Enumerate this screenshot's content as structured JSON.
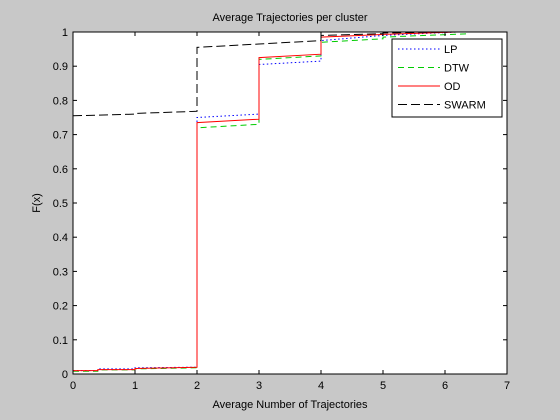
{
  "chart_data": {
    "type": "line",
    "title": "Average Trajectories per cluster",
    "xlabel": "Average Number of Trajectories",
    "ylabel": "F(x)",
    "xlim": [
      0,
      7
    ],
    "ylim": [
      0,
      1
    ],
    "xticks": [
      "0",
      "1",
      "2",
      "3",
      "4",
      "5",
      "6",
      "7"
    ],
    "yticks": [
      "0",
      "0.1",
      "0.2",
      "0.3",
      "0.4",
      "0.5",
      "0.6",
      "0.7",
      "0.8",
      "0.9",
      "1"
    ],
    "grid": false,
    "legend_position": "top-right",
    "series": [
      {
        "name": "LP",
        "color": "#0000ff",
        "dash": "dotted",
        "x": [
          0,
          0.4,
          0.4,
          1,
          1,
          2,
          2,
          3,
          3,
          4,
          4,
          5,
          5,
          6.2
        ],
        "y": [
          0.01,
          0.01,
          0.015,
          0.015,
          0.018,
          0.02,
          0.75,
          0.76,
          0.905,
          0.915,
          0.975,
          0.99,
          0.99,
          1.0
        ]
      },
      {
        "name": "DTW",
        "color": "#00cc00",
        "dash": "dashed",
        "x": [
          0,
          0.4,
          0.4,
          1,
          1,
          2,
          2,
          3,
          3,
          4,
          4,
          5,
          5,
          6.4
        ],
        "y": [
          0.008,
          0.008,
          0.012,
          0.012,
          0.015,
          0.018,
          0.72,
          0.73,
          0.92,
          0.93,
          0.97,
          0.98,
          0.985,
          0.995
        ]
      },
      {
        "name": "OD",
        "color": "#ff0000",
        "dash": "solid",
        "x": [
          0,
          0.4,
          0.4,
          1,
          1,
          2,
          2,
          3,
          3,
          4,
          4,
          5,
          5,
          6.2
        ],
        "y": [
          0.01,
          0.01,
          0.013,
          0.013,
          0.016,
          0.02,
          0.735,
          0.745,
          0.925,
          0.935,
          0.985,
          0.993,
          0.993,
          1.0
        ]
      },
      {
        "name": "SWARM",
        "color": "#000000",
        "dash": "longdash",
        "x": [
          0,
          1,
          1,
          2,
          2,
          3,
          3,
          4,
          4,
          5,
          5,
          6
        ],
        "y": [
          0.755,
          0.76,
          0.762,
          0.768,
          0.955,
          0.965,
          0.965,
          0.975,
          0.99,
          0.995,
          0.997,
          1.0
        ]
      }
    ]
  }
}
